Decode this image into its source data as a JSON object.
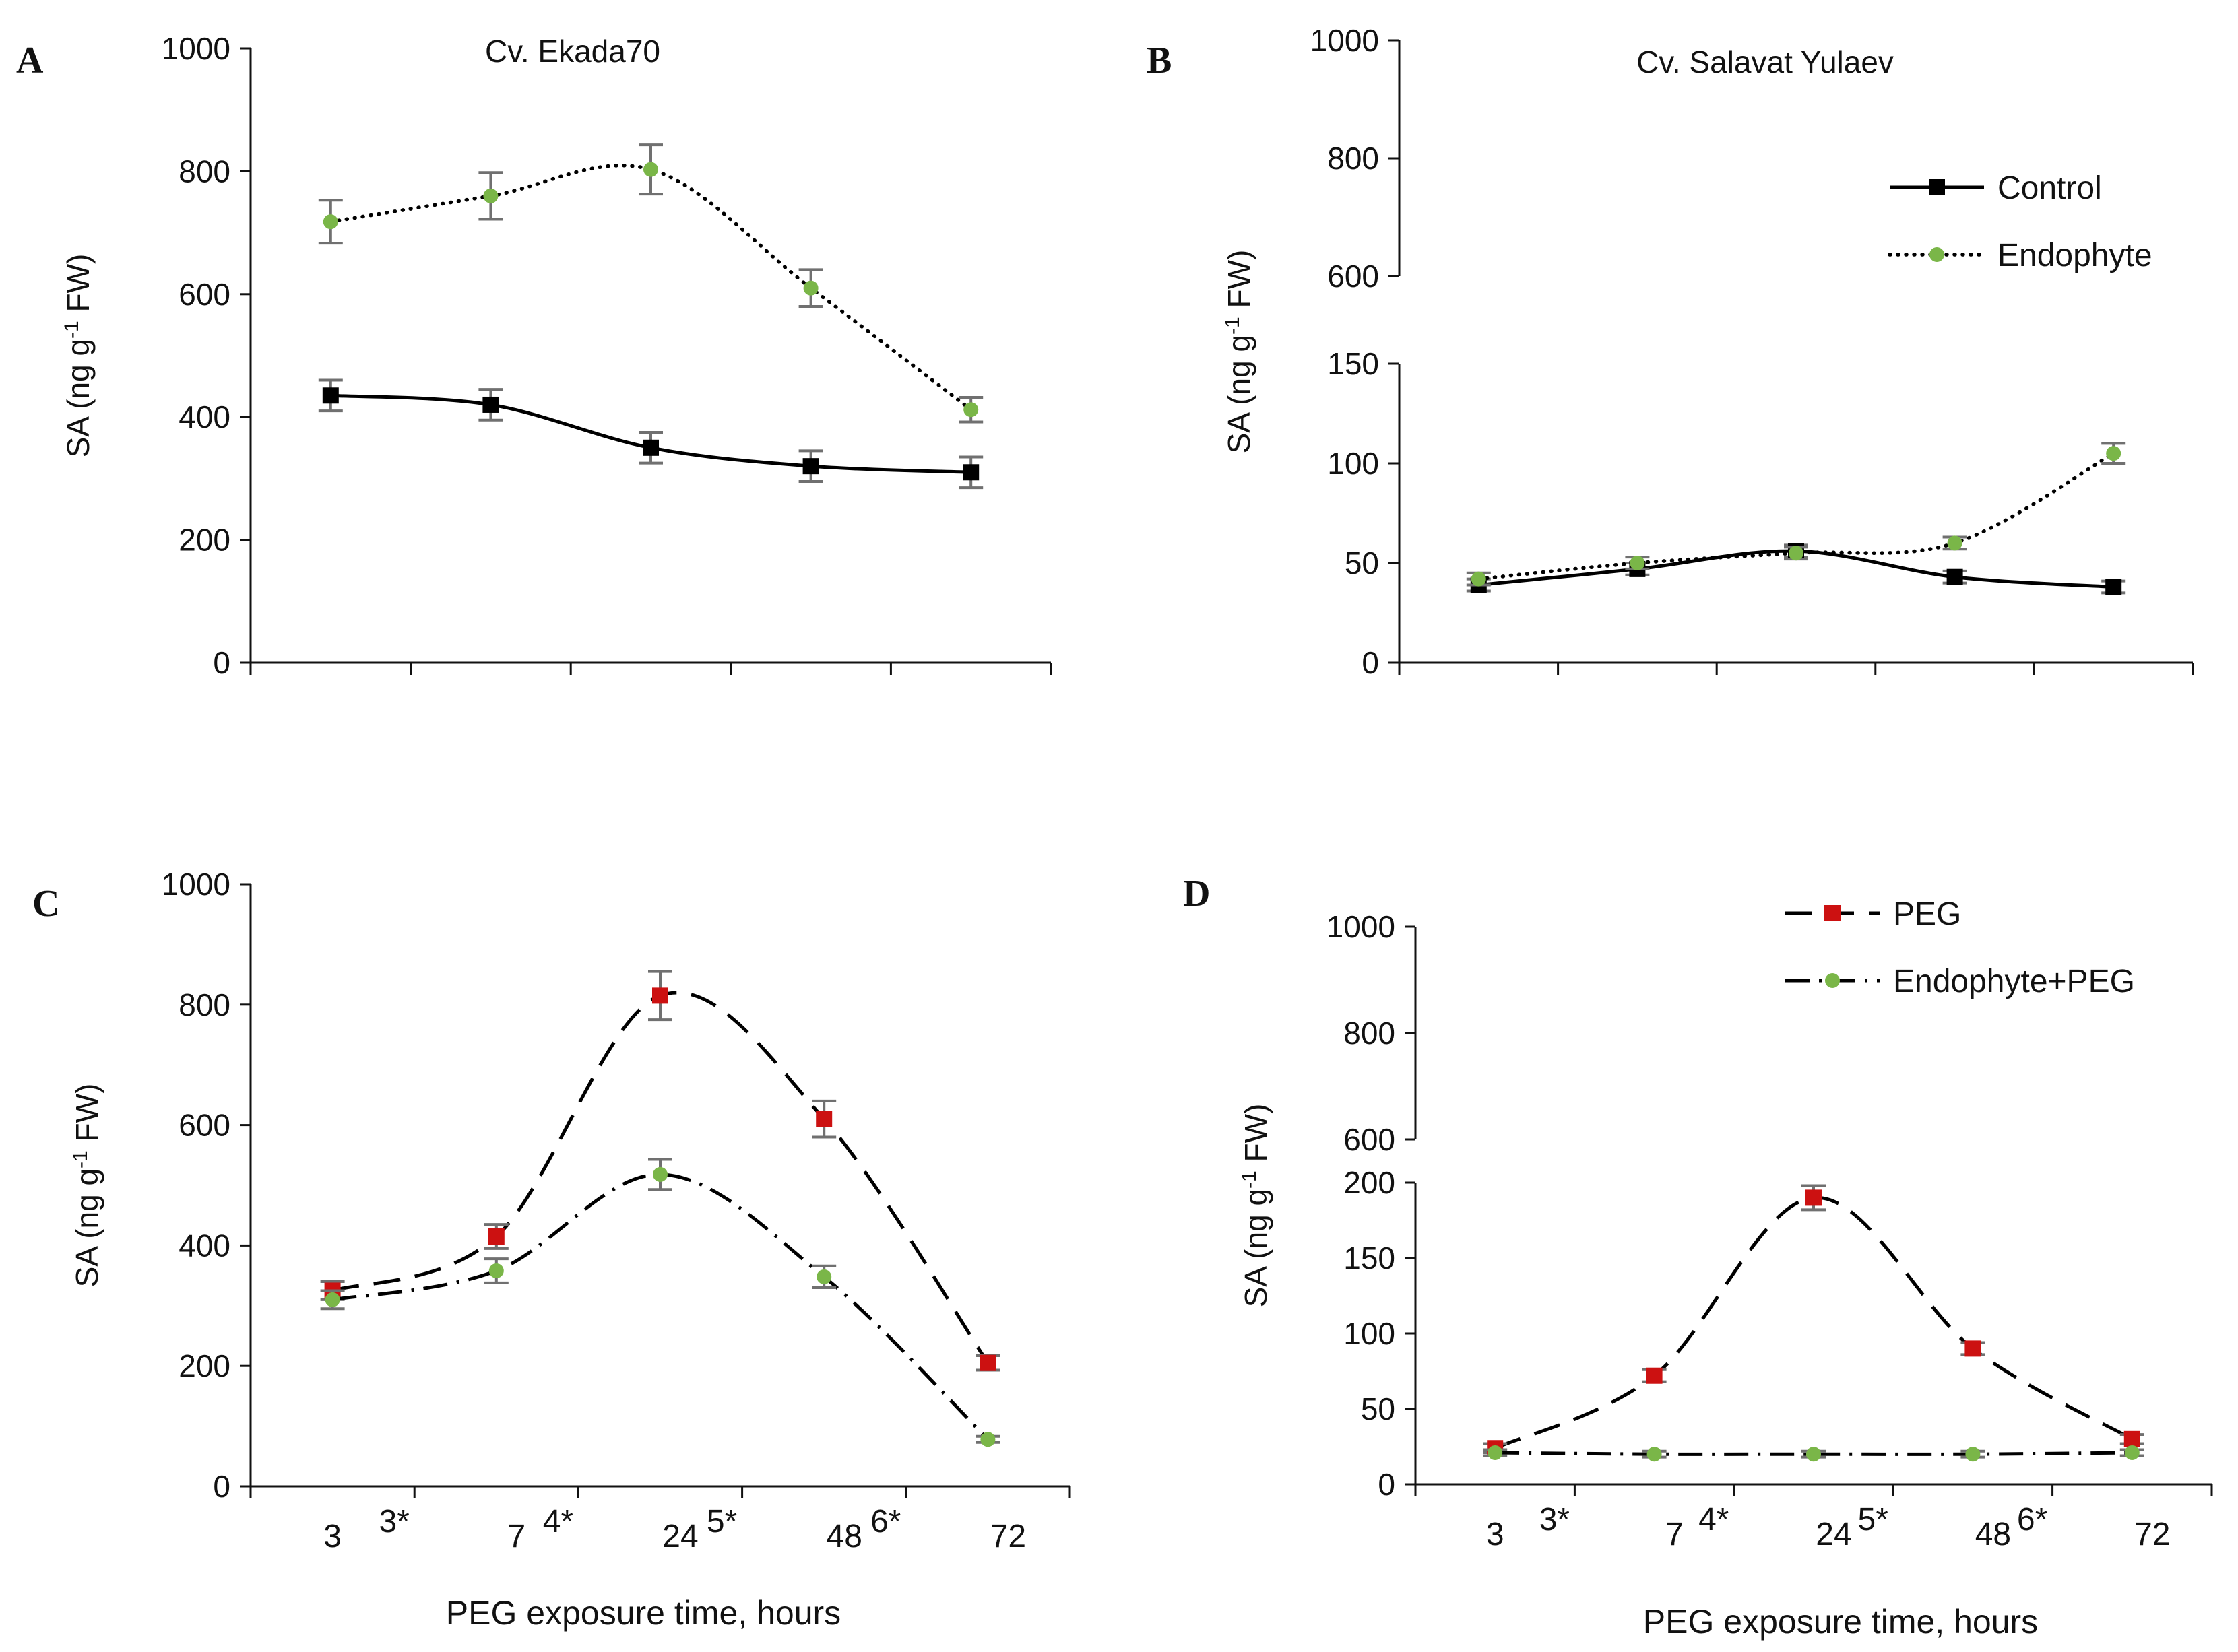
{
  "chart_data": [
    {
      "type": "line",
      "panel": "A",
      "title": "Cv. Ekada70",
      "ylabel": "SA (ng g-1 FW)",
      "xlabel": "",
      "ylim": [
        0,
        1000
      ],
      "yticks": [
        0,
        200,
        400,
        600,
        800,
        1000
      ],
      "x_tick_labels": [],
      "legend": null,
      "series": [
        {
          "name": "Control",
          "style": "control",
          "values": [
            435,
            420,
            350,
            320,
            310
          ],
          "errors": [
            25,
            25,
            25,
            25,
            25
          ]
        },
        {
          "name": "Endophyte",
          "style": "endophyte",
          "values": [
            718,
            760,
            803,
            610,
            412
          ],
          "errors": [
            35,
            38,
            40,
            30,
            20
          ]
        }
      ]
    },
    {
      "type": "line",
      "panel": "B",
      "title": "Cv. Salavat Yulaev",
      "ylabel": "SA (ng g-1 FW)",
      "xlabel": "",
      "ylim": [
        0,
        1000
      ],
      "axis_break": {
        "lower": [
          0,
          150
        ],
        "upper": [
          600,
          1000
        ]
      },
      "yticks_lower": [
        0,
        50,
        100,
        150
      ],
      "yticks_upper": [
        600,
        800,
        1000
      ],
      "x_tick_labels": [],
      "legend": {
        "position": "top-right",
        "entries": [
          "Control",
          "Endophyte"
        ]
      },
      "series": [
        {
          "name": "Control",
          "style": "control",
          "values": [
            39,
            47,
            56,
            43,
            38
          ],
          "errors": [
            3,
            3,
            3,
            3,
            3
          ]
        },
        {
          "name": "Endophyte",
          "style": "endophyte",
          "values": [
            42,
            50,
            55,
            60,
            105
          ],
          "errors": [
            3,
            3,
            3,
            3,
            5
          ]
        }
      ]
    },
    {
      "type": "line",
      "panel": "C",
      "title": "",
      "ylabel": "SA (ng g-1 FW)",
      "xlabel": "PEG exposure time, hours",
      "ylim": [
        0,
        1000
      ],
      "yticks": [
        0,
        200,
        400,
        600,
        800,
        1000
      ],
      "x_tick_labels": [
        "3",
        "7",
        "24",
        "48",
        "72"
      ],
      "between_labels": [
        "3*",
        "4*",
        "5*",
        "6*"
      ],
      "legend": null,
      "series": [
        {
          "name": "PEG",
          "style": "peg",
          "values": [
            325,
            415,
            815,
            610,
            205
          ],
          "errors": [
            15,
            20,
            40,
            30,
            12
          ]
        },
        {
          "name": "Endophyte+PEG",
          "style": "endopeg",
          "values": [
            310,
            358,
            518,
            348,
            78
          ],
          "errors": [
            15,
            20,
            25,
            18,
            5
          ]
        }
      ]
    },
    {
      "type": "line",
      "panel": "D",
      "title": "",
      "ylabel": "SA (ng g-1 FW)",
      "xlabel": "PEG exposure time, hours",
      "ylim": [
        0,
        1000
      ],
      "axis_break": {
        "lower": [
          0,
          200
        ],
        "upper": [
          600,
          1000
        ]
      },
      "yticks_lower": [
        0,
        50,
        100,
        150,
        200
      ],
      "yticks_upper": [
        600,
        800,
        1000
      ],
      "x_tick_labels": [
        "3",
        "7",
        "24",
        "48",
        "72"
      ],
      "between_labels": [
        "3*",
        "4*",
        "5*",
        "6*"
      ],
      "legend": {
        "position": "top-right",
        "entries": [
          "PEG",
          "Endophyte+PEG"
        ]
      },
      "series": [
        {
          "name": "PEG",
          "style": "peg",
          "values": [
            24,
            72,
            190,
            90,
            30
          ],
          "errors": [
            3,
            4,
            8,
            4,
            3
          ]
        },
        {
          "name": "Endophyte+PEG",
          "style": "endopeg",
          "values": [
            21,
            20,
            20,
            20,
            21
          ],
          "errors": [
            2,
            2,
            2,
            2,
            2
          ]
        }
      ]
    }
  ],
  "colors": {
    "axis": "#111111",
    "control": "#000000",
    "endophyte": "#7ab648",
    "peg": "#cc1111",
    "endopeg": "#7ab648",
    "error_bar": "#707070"
  }
}
